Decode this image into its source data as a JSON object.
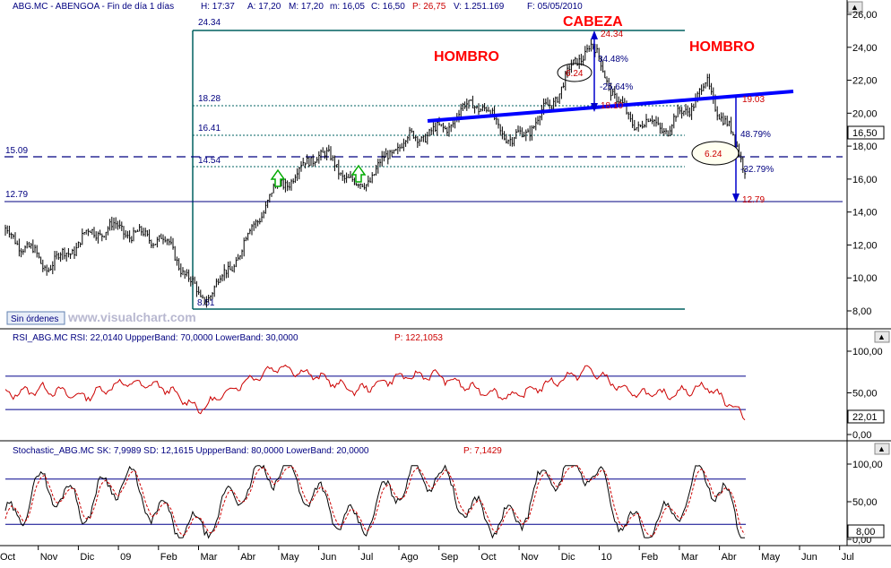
{
  "headers": {
    "price_prefix": "ABG.MC - ABENGOA - Fin de día 1 días",
    "price_h": "H: 17:37",
    "price_a": "A: 17,20",
    "price_m": "M: 17,20",
    "price_n": "m: 16,05",
    "price_c": "C: 16,50",
    "price_p": "P: 26,75",
    "price_v": "V: 1.251.169",
    "price_f": "F: 05/05/2010",
    "rsi": "RSI_ABG.MC  RSI: 22,0140  UppperBand: 70,0000  LowerBand: 30,0000",
    "rsi_p": "P: 122,1053",
    "stoch": "Stochastic_ABG.MC  SK: 7,9989  SD: 12,1615  UppperBand: 80,0000  LowerBand: 20,0000",
    "stoch_p": "P: 7,1429"
  },
  "annotations": {
    "cabeza": "CABEZA",
    "hombro_left": "HOMBRO",
    "hombro_right": "HOMBRO",
    "watermark": "www.visualchart.com",
    "sin_ordenes": "Sin órdenes",
    "lvl_2434": "24.34",
    "lvl_1828": "18.28",
    "lvl_1641": "16.41",
    "lvl_1454": "14.54",
    "lvl_1509": "15.09",
    "lvl_1279": "12.79",
    "lvl_851": "8.51",
    "head_top": "24.34",
    "head_neck": "18.10",
    "head_diff": "6.24",
    "head_pct_up": "34.48%",
    "head_pct_down": "-25.64%",
    "proj_top": "19.03",
    "proj_pct_up": "48.79%",
    "proj_diff": "6.24",
    "proj_pct_down": "-32.79%",
    "proj_target": "12.79"
  },
  "price_axis": {
    "ticks": [
      "26,00",
      "24,00",
      "22,00",
      "20,00",
      "18,00",
      "16,00",
      "14,00",
      "12,00",
      "10,00",
      "8,00"
    ],
    "current": "16,50"
  },
  "rsi_axis": {
    "ticks": [
      "100,00",
      "50,00",
      "0,00"
    ],
    "current": "22,01"
  },
  "stoch_axis": {
    "ticks": [
      "100,00",
      "50,00",
      "0,00"
    ],
    "current": "8,00"
  },
  "date_axis": [
    "Oct",
    "Nov",
    "Dic",
    "09",
    "Feb",
    "Mar",
    "Abr",
    "May",
    "Jun",
    "Jul",
    "Ago",
    "Sep",
    "Oct",
    "Nov",
    "Dic",
    "10",
    "Feb",
    "Mar",
    "Abr",
    "May",
    "Jun",
    "Jul"
  ],
  "colors": {
    "price": "#000000",
    "rsi": "#cc0000",
    "stoch_k": "#000000",
    "stoch_d": "#cc0000",
    "bands": "#00008b",
    "neckline": "#0000ff",
    "channel": "#006060",
    "hombro": "#ff0000",
    "arrow": "#00aa00"
  },
  "chart_data": [
    {
      "type": "line",
      "title": "ABG.MC - ABENGOA - Fin de día 1 días",
      "x": [
        "Oct",
        "Nov",
        "Dic",
        "09",
        "Feb",
        "Mar",
        "Abr",
        "May",
        "Jun",
        "Jul",
        "Ago",
        "Sep",
        "Oct",
        "Nov",
        "Dic",
        "10",
        "Feb",
        "Mar",
        "Abr",
        "May"
      ],
      "series": [
        {
          "name": "ABG.MC",
          "values": [
            12.6,
            10.8,
            12.4,
            13.0,
            12.5,
            8.6,
            11.5,
            15.5,
            17.8,
            15.3,
            18.1,
            18.6,
            21.0,
            18.0,
            20.8,
            24.0,
            19.8,
            18.8,
            22.0,
            16.5
          ]
        }
      ],
      "ylim": [
        7.5,
        26.0
      ]
    },
    {
      "type": "line",
      "title": "RSI_ABG.MC",
      "series": [
        {
          "name": "RSI",
          "values": [
            48,
            55,
            45,
            62,
            58,
            30,
            60,
            82,
            70,
            52,
            68,
            72,
            55,
            45,
            62,
            78,
            50,
            48,
            58,
            22
          ]
        }
      ],
      "bands": [
        70,
        30
      ],
      "ylim": [
        0,
        100
      ]
    },
    {
      "type": "line",
      "title": "Stochastic_ABG.MC",
      "series": [
        {
          "name": "SK",
          "values": [
            20,
            75,
            40,
            85,
            30,
            10,
            65,
            95,
            55,
            15,
            70,
            90,
            35,
            20,
            88,
            95,
            15,
            25,
            90,
            8
          ]
        },
        {
          "name": "SD",
          "values": [
            25,
            65,
            45,
            78,
            35,
            15,
            58,
            90,
            60,
            22,
            62,
            85,
            40,
            25,
            80,
            92,
            20,
            28,
            85,
            12
          ]
        }
      ],
      "bands": [
        80,
        20
      ],
      "ylim": [
        0,
        100
      ]
    }
  ]
}
